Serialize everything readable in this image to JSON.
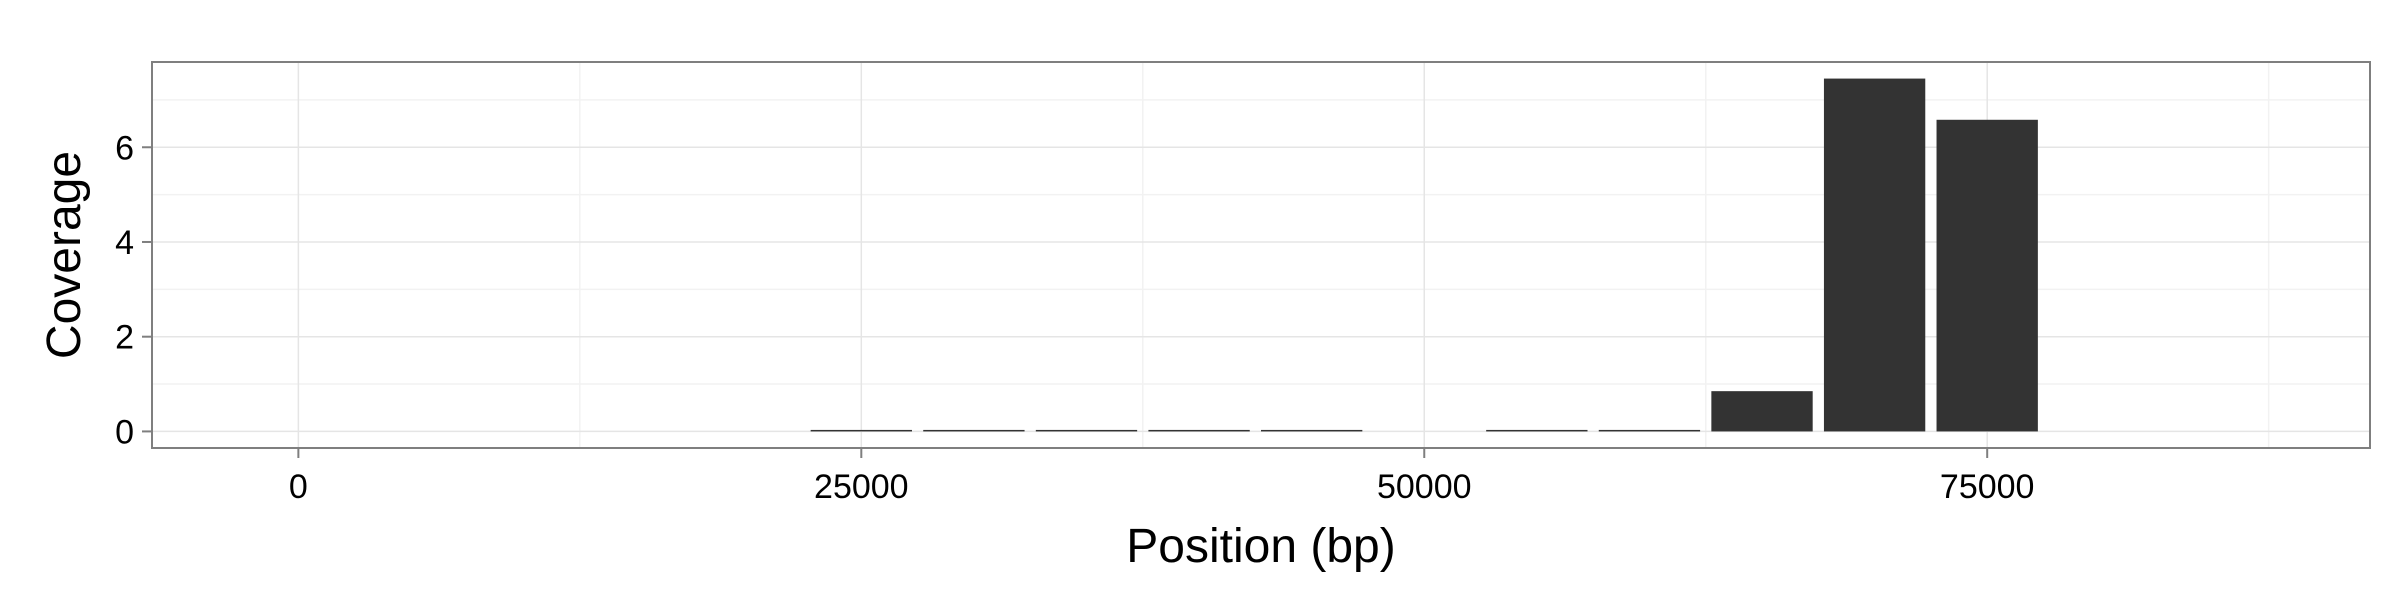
{
  "chart_data": {
    "type": "bar",
    "title": "",
    "xlabel": "Position (bp)",
    "ylabel": "Coverage",
    "xlim": [
      -6500,
      92000
    ],
    "ylim": [
      -0.35,
      7.8
    ],
    "x_ticks": [
      0,
      25000,
      50000,
      75000
    ],
    "x_tick_labels": [
      "0",
      "25000",
      "50000",
      "75000"
    ],
    "y_ticks": [
      0,
      2,
      4,
      6
    ],
    "y_tick_labels": [
      "0",
      "2",
      "4",
      "6"
    ],
    "grid": true,
    "legend": "none",
    "bar_color": "#333333",
    "bin_width": 5000,
    "x": [
      25000,
      30000,
      35000,
      40000,
      45000,
      55000,
      60000,
      65000,
      70000,
      75000
    ],
    "values": [
      0.02,
      0.02,
      0.02,
      0.02,
      0.02,
      0.02,
      0.02,
      0.85,
      7.45,
      6.58
    ]
  }
}
